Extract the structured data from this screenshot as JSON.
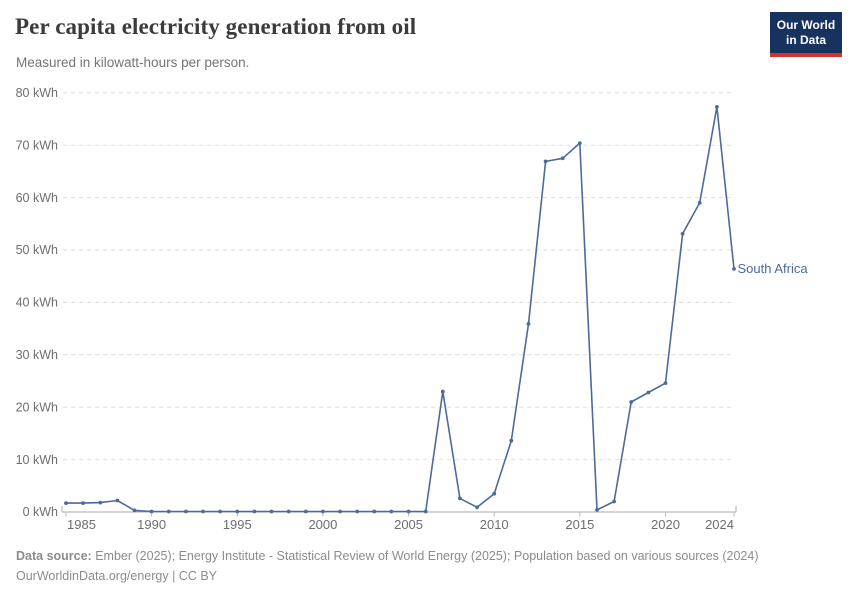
{
  "header": {
    "title": "Per capita electricity generation from oil",
    "subtitle": "Measured in kilowatt-hours per person."
  },
  "logo": {
    "line1": "Our World",
    "line2": "in Data",
    "bg_color": "#18325f",
    "bar_color": "#d0342c"
  },
  "chart_data": {
    "type": "line",
    "title": "Per capita electricity generation from oil",
    "xlabel": "",
    "ylabel": "kWh per person",
    "unit": "kWh",
    "xlim": [
      1985,
      2024
    ],
    "ylim": [
      0,
      80
    ],
    "grid": "horizontal-dashed",
    "legend": "end-of-line-label",
    "x": [
      1985,
      1986,
      1987,
      1988,
      1989,
      1990,
      1991,
      1992,
      1993,
      1994,
      1995,
      1996,
      1997,
      1998,
      1999,
      2000,
      2001,
      2002,
      2003,
      2004,
      2005,
      2006,
      2007,
      2008,
      2009,
      2010,
      2011,
      2012,
      2013,
      2014,
      2015,
      2016,
      2017,
      2018,
      2019,
      2020,
      2021,
      2022,
      2023,
      2024
    ],
    "series": [
      {
        "name": "South Africa",
        "color": "#4c6a9c",
        "values": [
          1.7,
          1.7,
          1.8,
          2.2,
          0.3,
          0.1,
          0.1,
          0.1,
          0.1,
          0.1,
          0.1,
          0.1,
          0.1,
          0.1,
          0.1,
          0.1,
          0.1,
          0.1,
          0.1,
          0.1,
          0.1,
          0.1,
          23,
          2.6,
          0.9,
          3.5,
          13.6,
          35.9,
          66.9,
          67.5,
          70.4,
          0.4,
          2,
          21,
          22.8,
          24.6,
          53.1,
          59,
          77.3,
          46.4
        ]
      }
    ],
    "yticks": [
      0,
      10,
      20,
      30,
      40,
      50,
      60,
      70,
      80
    ],
    "ytick_labels": [
      "0 kWh",
      "10 kWh",
      "20 kWh",
      "30 kWh",
      "40 kWh",
      "50 kWh",
      "60 kWh",
      "70 kWh",
      "80 kWh"
    ],
    "xticks": [
      1985,
      1990,
      1995,
      2000,
      2005,
      2010,
      2015,
      2020,
      2024
    ],
    "xtick_labels": [
      "1985",
      "1990",
      "1995",
      "2000",
      "2005",
      "2010",
      "2015",
      "2020",
      "2024"
    ]
  },
  "colors": {
    "series_line": "#4c6a9c",
    "series_label": "#4c6a9c",
    "gridline": "#dedede",
    "axis_line": "#a8a8a8",
    "tick_text": "#6e6e6e"
  },
  "footer": {
    "datasource_label": "Data source:",
    "datasource_text": " Ember (2025); Energy Institute - Statistical Review of World Energy (2025); Population based on various sources (2024)",
    "link_line": "OurWorldinData.org/energy | CC BY"
  }
}
